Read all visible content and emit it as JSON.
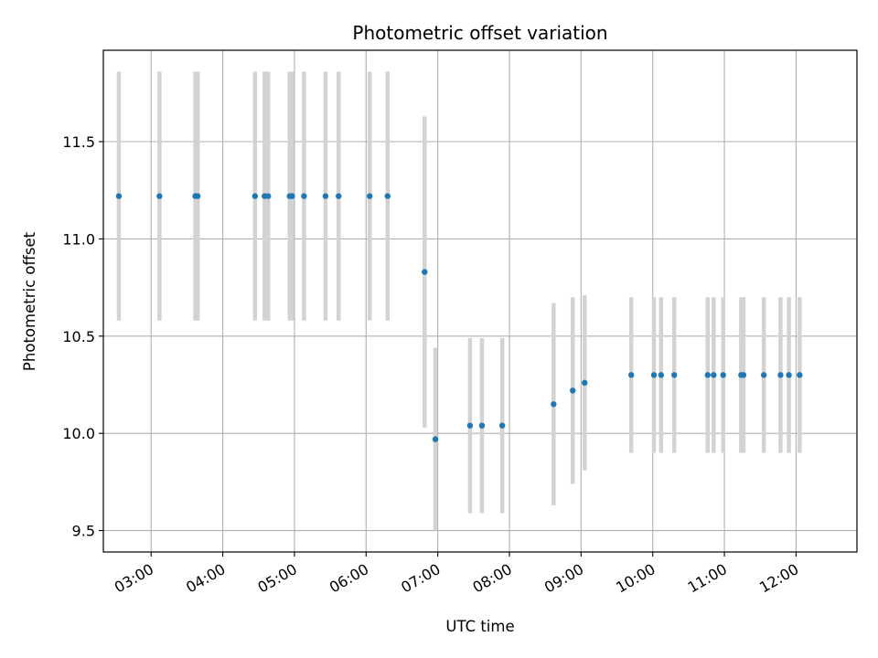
{
  "chart_data": {
    "type": "scatter",
    "title": "Photometric offset variation",
    "xlabel": "UTC time",
    "ylabel": "Photometric offset",
    "x_axis": "time",
    "xlim": [
      "02:20",
      "12:51"
    ],
    "ylim": [
      9.39,
      11.97
    ],
    "grid": true,
    "x_ticks": [
      "03:00",
      "04:00",
      "05:00",
      "06:00",
      "07:00",
      "08:00",
      "09:00",
      "10:00",
      "11:00",
      "12:00"
    ],
    "y_ticks": [
      "9.5",
      "10.0",
      "10.5",
      "11.0",
      "11.5"
    ],
    "colors": {
      "points": "#1f77b4",
      "error_bars": "#d3d3d3",
      "grid": "#b0b0b0"
    },
    "series": [
      {
        "points": [
          {
            "x": "02:33",
            "y": 11.22,
            "err": 0.64
          },
          {
            "x": "03:07",
            "y": 11.22,
            "err": 0.64
          },
          {
            "x": "03:37",
            "y": 11.22,
            "err": 0.64
          },
          {
            "x": "03:39",
            "y": 11.22,
            "err": 0.64
          },
          {
            "x": "04:27",
            "y": 11.22,
            "err": 0.64
          },
          {
            "x": "04:35",
            "y": 11.22,
            "err": 0.64
          },
          {
            "x": "04:38",
            "y": 11.22,
            "err": 0.64
          },
          {
            "x": "04:56",
            "y": 11.22,
            "err": 0.64
          },
          {
            "x": "04:58",
            "y": 11.22,
            "err": 0.64
          },
          {
            "x": "05:08",
            "y": 11.22,
            "err": 0.64
          },
          {
            "x": "05:26",
            "y": 11.22,
            "err": 0.64
          },
          {
            "x": "05:37",
            "y": 11.22,
            "err": 0.64
          },
          {
            "x": "06:03",
            "y": 11.22,
            "err": 0.64
          },
          {
            "x": "06:18",
            "y": 11.22,
            "err": 0.64
          },
          {
            "x": "06:49",
            "y": 10.83,
            "err": 0.8
          },
          {
            "x": "06:58",
            "y": 9.97,
            "err": 0.47
          },
          {
            "x": "07:27",
            "y": 10.04,
            "err": 0.45
          },
          {
            "x": "07:37",
            "y": 10.04,
            "err": 0.45
          },
          {
            "x": "07:54",
            "y": 10.04,
            "err": 0.45
          },
          {
            "x": "08:37",
            "y": 10.15,
            "err": 0.52
          },
          {
            "x": "08:53",
            "y": 10.22,
            "err": 0.48
          },
          {
            "x": "09:03",
            "y": 10.26,
            "err": 0.45
          },
          {
            "x": "09:42",
            "y": 10.3,
            "err": 0.4
          },
          {
            "x": "10:01",
            "y": 10.3,
            "err": 0.4
          },
          {
            "x": "10:07",
            "y": 10.3,
            "err": 0.4
          },
          {
            "x": "10:18",
            "y": 10.3,
            "err": 0.4
          },
          {
            "x": "10:46",
            "y": 10.3,
            "err": 0.4
          },
          {
            "x": "10:51",
            "y": 10.3,
            "err": 0.4
          },
          {
            "x": "10:59",
            "y": 10.3,
            "err": 0.4
          },
          {
            "x": "11:14",
            "y": 10.3,
            "err": 0.4
          },
          {
            "x": "11:16",
            "y": 10.3,
            "err": 0.4
          },
          {
            "x": "11:33",
            "y": 10.3,
            "err": 0.4
          },
          {
            "x": "11:47",
            "y": 10.3,
            "err": 0.4
          },
          {
            "x": "11:54",
            "y": 10.3,
            "err": 0.4
          },
          {
            "x": "12:03",
            "y": 10.3,
            "err": 0.4
          }
        ]
      }
    ]
  }
}
